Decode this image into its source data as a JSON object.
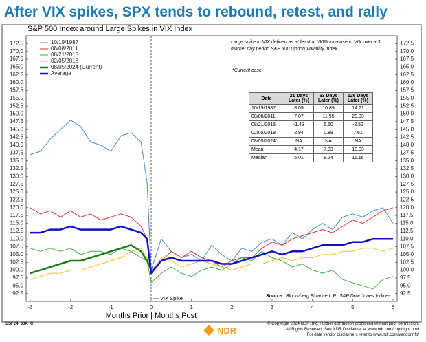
{
  "headline": "After VIX spikes, SPX tends to rebound, retest, and rally",
  "chart_data": {
    "type": "line",
    "title": "S&P 500 Index around Large Spikes in VIX Index",
    "x_label": "Months Prior | Months Post",
    "annotation": "VIX Spike",
    "note": "Large spike in VIX defined as at least a 100% increase in VIX over a 3 market day period S&P 500 Option Volatility Index",
    "note2": "*Current case",
    "source_label": "Source:",
    "source": "Bloomberg Finance L.P., S&P Dow Jones Indices",
    "x": [
      -3,
      -2.75,
      -2.5,
      -2.25,
      -2,
      -1.75,
      -1.5,
      -1.25,
      -1,
      -0.75,
      -0.5,
      -0.25,
      -0.1,
      0,
      0.25,
      0.5,
      0.75,
      1,
      1.25,
      1.5,
      1.75,
      2,
      2.25,
      2.5,
      2.75,
      3,
      3.25,
      3.5,
      3.75,
      4,
      4.25,
      4.5,
      4.75,
      5,
      5.25,
      5.5,
      5.75,
      6
    ],
    "series": [
      {
        "name": "10/19/1987",
        "color": "#4a86c8",
        "width": 1,
        "values": [
          137,
          138,
          142,
          145,
          148,
          146,
          141,
          140,
          138,
          143,
          144,
          141,
          128,
          100,
          110,
          106,
          104,
          105,
          103,
          108,
          105,
          103,
          107,
          106,
          109,
          110,
          108,
          112,
          110,
          113,
          115,
          113,
          117,
          118,
          117,
          119,
          120,
          115
        ]
      },
      {
        "name": "08/08/2011",
        "color": "#e0302a",
        "width": 1,
        "values": [
          120,
          118,
          119,
          117,
          119,
          117,
          118,
          116,
          117,
          118,
          117,
          114,
          110,
          100,
          103,
          106,
          104,
          106,
          104,
          103,
          101,
          103,
          104,
          104,
          107,
          109,
          108,
          110,
          111,
          112,
          113,
          112,
          114,
          116,
          115,
          117,
          119,
          120
        ]
      },
      {
        "name": "08/21/2015",
        "color": "#3cb043",
        "width": 1,
        "values": [
          107,
          106,
          107,
          106,
          107,
          105,
          106,
          106,
          105,
          107,
          106,
          104,
          103,
          96,
          99,
          101,
          99,
          98,
          100,
          101,
          100,
          102,
          104,
          103,
          106,
          104,
          103,
          101,
          102,
          100,
          99,
          100,
          97,
          96,
          95,
          94,
          97,
          98
        ]
      },
      {
        "name": "02/05/2018",
        "color": "#f2c12e",
        "width": 1,
        "values": [
          97,
          98,
          99,
          99,
          100,
          100,
          101,
          102,
          103,
          104,
          106,
          107,
          104,
          99,
          104,
          103,
          101,
          102,
          103,
          102,
          101,
          100,
          101,
          102,
          102,
          103,
          104,
          103,
          104,
          104,
          105,
          105,
          106,
          106,
          107,
          107,
          106,
          107
        ]
      },
      {
        "name": "08/05/2024 (Current)",
        "color": "#1a7a1a",
        "width": 2.5,
        "values": [
          99,
          100,
          101,
          102,
          103,
          103,
          104,
          105,
          106,
          107,
          108,
          106,
          103,
          100,
          null,
          null,
          null,
          null,
          null,
          null,
          null,
          null,
          null,
          null,
          null,
          null,
          null,
          null,
          null,
          null,
          null,
          null,
          null,
          null,
          null,
          null,
          null,
          null
        ]
      },
      {
        "name": "Average",
        "color": "#1010c8",
        "width": 2.5,
        "values": [
          112,
          112,
          113,
          113,
          114,
          113,
          113,
          113,
          113,
          114,
          113,
          112,
          110,
          99,
          103,
          104,
          103,
          103,
          103,
          103,
          102,
          102,
          103,
          104,
          105,
          106,
          105,
          106,
          106,
          107,
          108,
          108,
          108,
          109,
          109,
          110,
          110,
          110
        ]
      }
    ],
    "xlim": [
      -3,
      6
    ],
    "xticks": [
      -3,
      -2,
      -1,
      0,
      1,
      2,
      3,
      4,
      5,
      6
    ],
    "ylim": [
      90,
      175
    ],
    "yticks": [
      92.5,
      {
        "value": 95,
        "label": "95.0"
      },
      97.5,
      {
        "value": 100,
        "label": "100.0"
      },
      102.5,
      {
        "value": 105,
        "label": "105.0"
      },
      107.5,
      {
        "value": 110,
        "label": "110.0"
      },
      112.5,
      {
        "value": 115,
        "label": "115.0"
      },
      117.5,
      {
        "value": 120,
        "label": "120.0"
      },
      122.5,
      {
        "value": 125,
        "label": "125.0"
      },
      127.5,
      {
        "value": 130,
        "label": "130.0"
      },
      132.5,
      {
        "value": 135,
        "label": "135.0"
      },
      137.5,
      {
        "value": 140,
        "label": "140.0"
      },
      142.5,
      {
        "value": 145,
        "label": "145.0"
      },
      147.5,
      {
        "value": 150,
        "label": "150.0"
      },
      152.5,
      {
        "value": 155,
        "label": "155.0"
      },
      157.5,
      {
        "value": 160,
        "label": "160.0"
      },
      162.5,
      {
        "value": 165,
        "label": "165.0"
      },
      167.5,
      {
        "value": 170,
        "label": "170.0"
      },
      172.5
    ]
  },
  "table": {
    "header": [
      "Date",
      "21 Days Later (%)",
      "63 Days Later (%)",
      "126 Days Later (%)"
    ],
    "rows": [
      [
        "10/19/1987",
        "8.09",
        "10.89",
        "14.71"
      ],
      [
        "08/08/2011",
        "7.07",
        "11.95",
        "20.33"
      ],
      [
        "08/21/2015",
        "-1.43",
        "5.60",
        "-2.52"
      ],
      [
        "02/05/2018",
        "2.94",
        "0.89",
        "7.61"
      ],
      [
        "08/05/2024*",
        "NA",
        "NA",
        "NA"
      ],
      [
        "Mean",
        "4.17",
        "7.33",
        "10.03"
      ],
      [
        "Median",
        "5.01",
        "8.24",
        "11.16"
      ]
    ]
  },
  "footer": {
    "code": "SSF24_30A_C",
    "logo": "NDR",
    "copyright": [
      "© Copyright 2024 NDR, Inc. Further distribution prohibited without prior permission.",
      "All Rights Reserved. See NDR Disclaimer at www.ndr.com/copyright.html",
      "For data vendor disclaimers refer to www.ndr.com/vendorinfo/"
    ]
  }
}
